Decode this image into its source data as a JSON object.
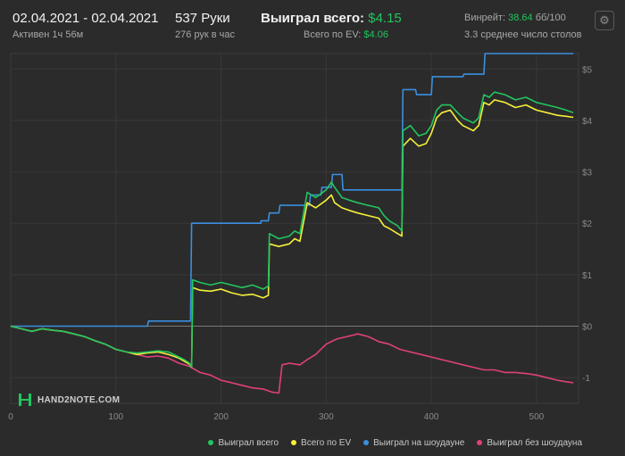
{
  "header": {
    "date_range": "02.04.2021 - 02.04.2021",
    "active": "Активен 1ч 56м",
    "hands": "537 Руки",
    "hands_per_hour": "276 рук в час",
    "won_total_label": "Выиграл всего:",
    "won_total_value": "$4.15",
    "ev_total_label": "Всего по EV:",
    "ev_total_value": "$4.06",
    "winrate_label": "Винрейт:",
    "winrate_value": "38.64",
    "winrate_unit": "бб/100",
    "tables_avg": "3.3 среднее число столов",
    "settings_icon": "gear-icon"
  },
  "logo": {
    "text": "HAND2NOTE.COM"
  },
  "colors": {
    "background": "#2b2b2b",
    "won": "#22c55e",
    "ev": "#f5f03a",
    "showdown": "#3b8fe0",
    "non_showdown": "#e0407a",
    "positive": "#22c55e"
  },
  "chart_data": {
    "type": "line",
    "xlabel": "",
    "ylabel": "",
    "xlim": [
      0,
      540
    ],
    "ylim": [
      -1.5,
      5.3
    ],
    "x_ticks": [
      0,
      100,
      200,
      300,
      400,
      500
    ],
    "y_ticks": [
      -1,
      0,
      1,
      2,
      3,
      4,
      5
    ],
    "y_tick_labels": [
      "-1",
      "$0",
      "$1",
      "$2",
      "$3",
      "$4",
      "$5"
    ],
    "x_tick_labels": [
      "0",
      "100",
      "200",
      "300",
      "400",
      "500"
    ],
    "grid": true,
    "legend_position": "bottom-right",
    "series": [
      {
        "name": "Выиграл всего",
        "color": "#22c55e",
        "points": [
          [
            0,
            0
          ],
          [
            10,
            -0.05
          ],
          [
            20,
            -0.1
          ],
          [
            30,
            -0.05
          ],
          [
            40,
            -0.08
          ],
          [
            50,
            -0.1
          ],
          [
            60,
            -0.15
          ],
          [
            70,
            -0.2
          ],
          [
            80,
            -0.28
          ],
          [
            90,
            -0.35
          ],
          [
            100,
            -0.45
          ],
          [
            110,
            -0.5
          ],
          [
            120,
            -0.52
          ],
          [
            130,
            -0.5
          ],
          [
            140,
            -0.48
          ],
          [
            150,
            -0.5
          ],
          [
            160,
            -0.6
          ],
          [
            165,
            -0.65
          ],
          [
            170,
            -0.72
          ],
          [
            172,
            -0.8
          ],
          [
            173,
            0.9
          ],
          [
            180,
            0.85
          ],
          [
            190,
            0.8
          ],
          [
            200,
            0.85
          ],
          [
            210,
            0.8
          ],
          [
            220,
            0.75
          ],
          [
            230,
            0.8
          ],
          [
            240,
            0.72
          ],
          [
            245,
            0.78
          ],
          [
            246,
            1.8
          ],
          [
            255,
            1.7
          ],
          [
            265,
            1.75
          ],
          [
            270,
            1.85
          ],
          [
            275,
            1.8
          ],
          [
            282,
            2.6
          ],
          [
            290,
            2.5
          ],
          [
            300,
            2.65
          ],
          [
            305,
            2.8
          ],
          [
            308,
            2.7
          ],
          [
            315,
            2.5
          ],
          [
            322,
            2.45
          ],
          [
            330,
            2.4
          ],
          [
            340,
            2.35
          ],
          [
            350,
            2.3
          ],
          [
            355,
            2.15
          ],
          [
            360,
            2.05
          ],
          [
            368,
            1.95
          ],
          [
            372,
            1.85
          ],
          [
            373,
            3.8
          ],
          [
            380,
            3.9
          ],
          [
            388,
            3.7
          ],
          [
            395,
            3.75
          ],
          [
            400,
            3.9
          ],
          [
            405,
            4.2
          ],
          [
            410,
            4.3
          ],
          [
            418,
            4.3
          ],
          [
            425,
            4.15
          ],
          [
            430,
            4.05
          ],
          [
            440,
            3.95
          ],
          [
            445,
            4.05
          ],
          [
            450,
            4.5
          ],
          [
            455,
            4.45
          ],
          [
            460,
            4.55
          ],
          [
            470,
            4.5
          ],
          [
            480,
            4.4
          ],
          [
            490,
            4.45
          ],
          [
            500,
            4.35
          ],
          [
            510,
            4.3
          ],
          [
            520,
            4.25
          ],
          [
            528,
            4.2
          ],
          [
            535,
            4.15
          ]
        ]
      },
      {
        "name": "Всего по EV",
        "color": "#f5f03a",
        "points": [
          [
            0,
            0
          ],
          [
            10,
            -0.05
          ],
          [
            20,
            -0.1
          ],
          [
            30,
            -0.05
          ],
          [
            40,
            -0.08
          ],
          [
            50,
            -0.1
          ],
          [
            60,
            -0.15
          ],
          [
            70,
            -0.2
          ],
          [
            80,
            -0.28
          ],
          [
            90,
            -0.35
          ],
          [
            100,
            -0.45
          ],
          [
            110,
            -0.5
          ],
          [
            120,
            -0.55
          ],
          [
            130,
            -0.52
          ],
          [
            140,
            -0.5
          ],
          [
            150,
            -0.55
          ],
          [
            160,
            -0.62
          ],
          [
            165,
            -0.68
          ],
          [
            170,
            -0.74
          ],
          [
            172,
            -0.8
          ],
          [
            173,
            0.75
          ],
          [
            180,
            0.7
          ],
          [
            190,
            0.68
          ],
          [
            200,
            0.72
          ],
          [
            210,
            0.65
          ],
          [
            220,
            0.6
          ],
          [
            230,
            0.62
          ],
          [
            240,
            0.55
          ],
          [
            245,
            0.6
          ],
          [
            246,
            1.6
          ],
          [
            255,
            1.55
          ],
          [
            265,
            1.6
          ],
          [
            270,
            1.7
          ],
          [
            275,
            1.65
          ],
          [
            282,
            2.4
          ],
          [
            290,
            2.3
          ],
          [
            300,
            2.45
          ],
          [
            305,
            2.55
          ],
          [
            308,
            2.4
          ],
          [
            315,
            2.3
          ],
          [
            322,
            2.25
          ],
          [
            330,
            2.2
          ],
          [
            340,
            2.15
          ],
          [
            350,
            2.1
          ],
          [
            355,
            1.95
          ],
          [
            360,
            1.9
          ],
          [
            368,
            1.8
          ],
          [
            372,
            1.75
          ],
          [
            373,
            3.5
          ],
          [
            380,
            3.65
          ],
          [
            388,
            3.5
          ],
          [
            395,
            3.55
          ],
          [
            400,
            3.75
          ],
          [
            405,
            4.05
          ],
          [
            410,
            4.15
          ],
          [
            418,
            4.2
          ],
          [
            425,
            4.0
          ],
          [
            430,
            3.9
          ],
          [
            440,
            3.8
          ],
          [
            445,
            3.9
          ],
          [
            450,
            4.35
          ],
          [
            455,
            4.3
          ],
          [
            460,
            4.4
          ],
          [
            470,
            4.35
          ],
          [
            480,
            4.25
          ],
          [
            490,
            4.3
          ],
          [
            500,
            4.2
          ],
          [
            510,
            4.15
          ],
          [
            520,
            4.1
          ],
          [
            528,
            4.08
          ],
          [
            535,
            4.06
          ]
        ]
      },
      {
        "name": "Выиграл на шоудауне",
        "color": "#3b8fe0",
        "points": [
          [
            0,
            0
          ],
          [
            130,
            0
          ],
          [
            131,
            0.1
          ],
          [
            171,
            0.1
          ],
          [
            172,
            2.0
          ],
          [
            238,
            2.0
          ],
          [
            238,
            2.05
          ],
          [
            245,
            2.05
          ],
          [
            246,
            2.2
          ],
          [
            255,
            2.2
          ],
          [
            256,
            2.35
          ],
          [
            284,
            2.35
          ],
          [
            285,
            2.55
          ],
          [
            295,
            2.55
          ],
          [
            296,
            2.7
          ],
          [
            305,
            2.7
          ],
          [
            306,
            2.95
          ],
          [
            315,
            2.95
          ],
          [
            316,
            2.65
          ],
          [
            372,
            2.65
          ],
          [
            373,
            4.6
          ],
          [
            385,
            4.6
          ],
          [
            386,
            4.5
          ],
          [
            400,
            4.5
          ],
          [
            401,
            4.85
          ],
          [
            430,
            4.85
          ],
          [
            431,
            4.9
          ],
          [
            450,
            4.9
          ],
          [
            451,
            5.3
          ],
          [
            535,
            5.3
          ]
        ]
      },
      {
        "name": "Выиграл без шоудауна",
        "color": "#e0407a",
        "points": [
          [
            0,
            0
          ],
          [
            10,
            -0.05
          ],
          [
            20,
            -0.1
          ],
          [
            30,
            -0.05
          ],
          [
            40,
            -0.08
          ],
          [
            50,
            -0.1
          ],
          [
            60,
            -0.15
          ],
          [
            70,
            -0.2
          ],
          [
            80,
            -0.28
          ],
          [
            90,
            -0.35
          ],
          [
            100,
            -0.45
          ],
          [
            110,
            -0.5
          ],
          [
            120,
            -0.55
          ],
          [
            130,
            -0.6
          ],
          [
            140,
            -0.58
          ],
          [
            150,
            -0.62
          ],
          [
            160,
            -0.72
          ],
          [
            170,
            -0.78
          ],
          [
            180,
            -0.9
          ],
          [
            190,
            -0.95
          ],
          [
            200,
            -1.05
          ],
          [
            210,
            -1.1
          ],
          [
            220,
            -1.15
          ],
          [
            230,
            -1.2
          ],
          [
            240,
            -1.22
          ],
          [
            248,
            -1.28
          ],
          [
            255,
            -1.3
          ],
          [
            258,
            -0.75
          ],
          [
            265,
            -0.72
          ],
          [
            275,
            -0.75
          ],
          [
            282,
            -0.65
          ],
          [
            290,
            -0.55
          ],
          [
            300,
            -0.35
          ],
          [
            310,
            -0.25
          ],
          [
            320,
            -0.2
          ],
          [
            330,
            -0.15
          ],
          [
            340,
            -0.2
          ],
          [
            350,
            -0.3
          ],
          [
            360,
            -0.35
          ],
          [
            370,
            -0.45
          ],
          [
            380,
            -0.5
          ],
          [
            390,
            -0.55
          ],
          [
            400,
            -0.6
          ],
          [
            410,
            -0.65
          ],
          [
            420,
            -0.7
          ],
          [
            430,
            -0.75
          ],
          [
            440,
            -0.8
          ],
          [
            450,
            -0.85
          ],
          [
            460,
            -0.85
          ],
          [
            470,
            -0.9
          ],
          [
            480,
            -0.9
          ],
          [
            490,
            -0.92
          ],
          [
            500,
            -0.95
          ],
          [
            510,
            -1.0
          ],
          [
            520,
            -1.05
          ],
          [
            528,
            -1.08
          ],
          [
            535,
            -1.1
          ]
        ]
      }
    ]
  }
}
